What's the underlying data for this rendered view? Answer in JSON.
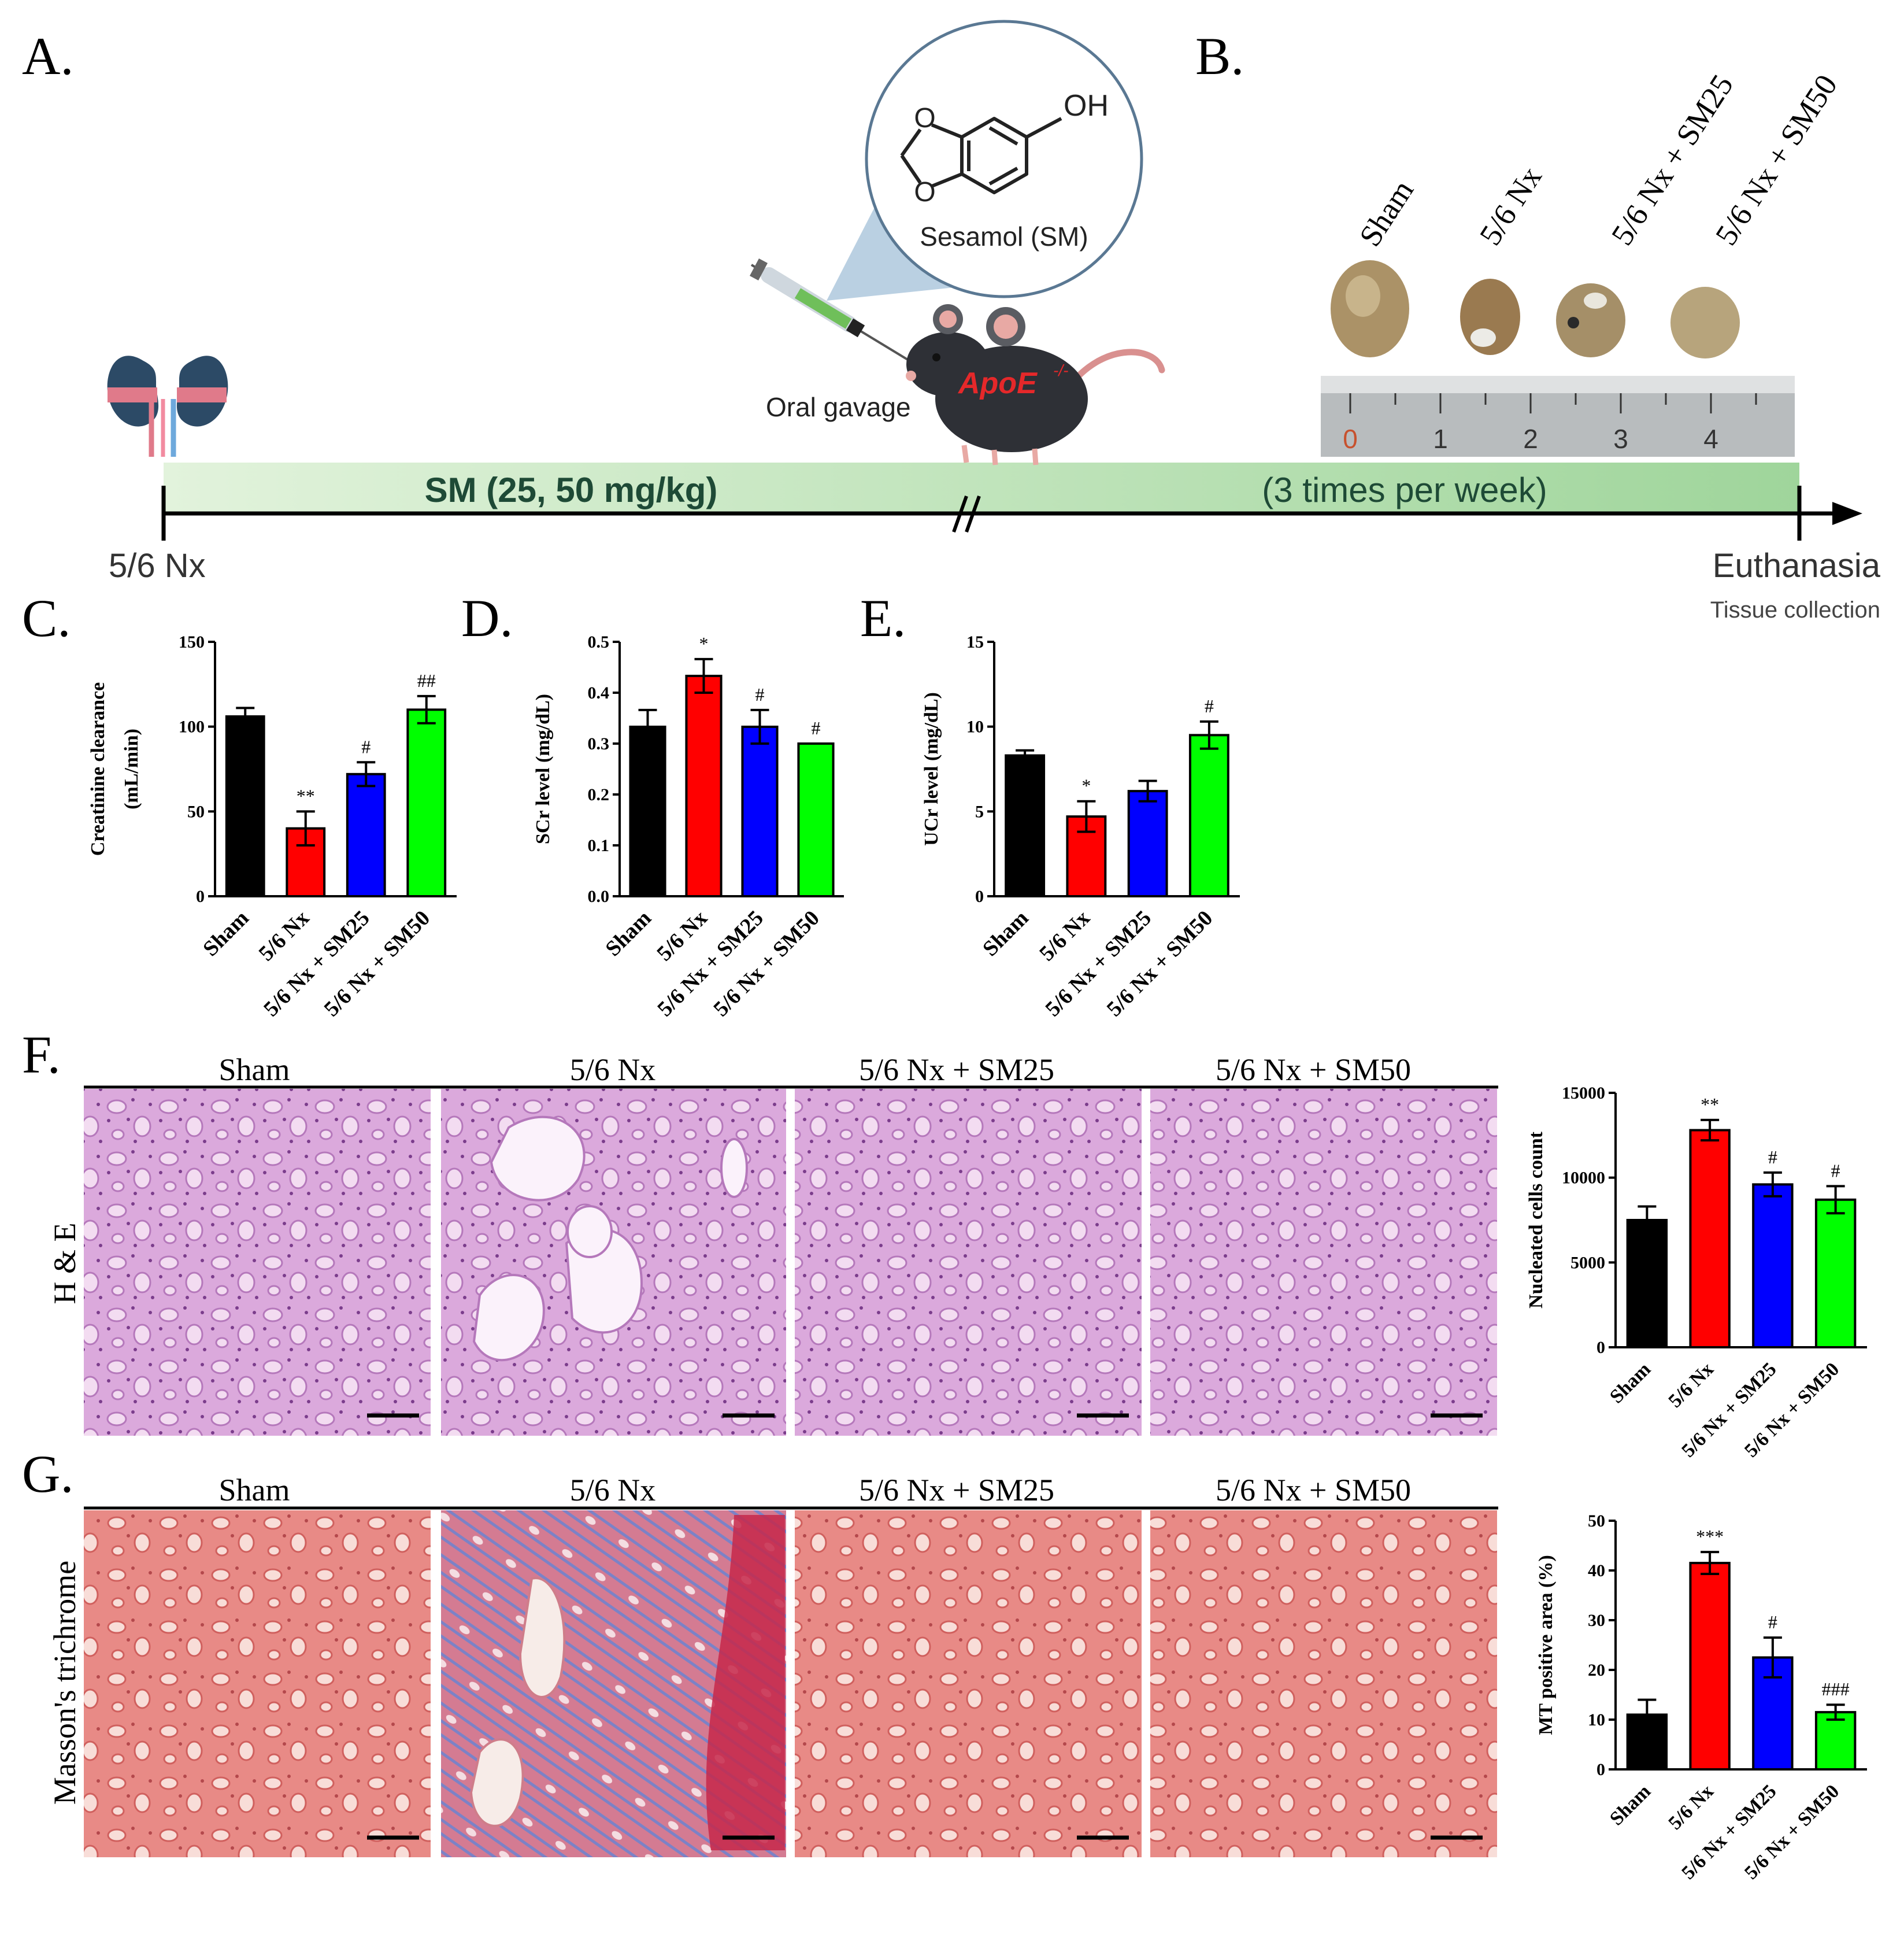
{
  "panels": {
    "A": "A.",
    "B": "B.",
    "C": "C.",
    "D": "D.",
    "E": "E.",
    "F": "F.",
    "G": "G."
  },
  "timeline": {
    "start_label": "5/6 Nx",
    "bar_left_text": "SM (25, 50 mg/kg)",
    "bar_right_text": "(3 times per week)",
    "end_label": "Euthanasia",
    "end_sublabel": "Tissue collection",
    "gavage_label": "Oral gavage",
    "mouse_label": "ApoE",
    "mouse_superscript": "-/-",
    "compound_label": "Sesamol (SM)",
    "compound_oh": "OH",
    "compound_o": "O"
  },
  "groups": [
    "Sham",
    "5/6 Nx",
    "5/6 Nx + SM25",
    "5/6 Nx + SM50"
  ],
  "colors": {
    "Sham": "#000000",
    "5/6 Nx": "#ff0000",
    "5/6 Nx + SM25": "#0000ff",
    "5/6 Nx + SM50": "#00ff00"
  },
  "ruler_ticks": [
    "0",
    "1",
    "2",
    "3",
    "4"
  ],
  "histology": {
    "rows": [
      "H & E",
      "Masson's trichrome"
    ]
  },
  "chart_data": [
    {
      "id": "C",
      "type": "bar",
      "categories": [
        "Sham",
        "5/6 Nx",
        "5/6 Nx + SM25",
        "5/6 Nx + SM50"
      ],
      "values": [
        106,
        40,
        72,
        110
      ],
      "errors": [
        5,
        10,
        7,
        8
      ],
      "annotations": [
        "",
        "**",
        "#",
        "##"
      ],
      "ylabel": "Creatinine clearance",
      "ylabel2": "(mL/min)",
      "ylim": [
        0,
        150
      ],
      "yticks": [
        0,
        50,
        100,
        150
      ],
      "ytick_labels": [
        "0",
        "50",
        "100",
        "150"
      ]
    },
    {
      "id": "D",
      "type": "bar",
      "categories": [
        "Sham",
        "5/6 Nx",
        "5/6 Nx + SM25",
        "5/6 Nx + SM50"
      ],
      "values": [
        0.333,
        0.433,
        0.333,
        0.3
      ],
      "errors": [
        0.033,
        0.033,
        0.033,
        0
      ],
      "annotations": [
        "",
        "*",
        "#",
        "#"
      ],
      "ylabel": "SCr level (mg/dL)",
      "ylim": [
        0,
        0.5
      ],
      "yticks": [
        0,
        0.1,
        0.2,
        0.3,
        0.4,
        0.5
      ],
      "ytick_labels": [
        "0.0",
        "0.1",
        "0.2",
        "0.3",
        "0.4",
        "0.5"
      ]
    },
    {
      "id": "E",
      "type": "bar",
      "categories": [
        "Sham",
        "5/6 Nx",
        "5/6 Nx + SM25",
        "5/6 Nx + SM50"
      ],
      "values": [
        8.3,
        4.7,
        6.2,
        9.5
      ],
      "errors": [
        0.3,
        0.9,
        0.6,
        0.8
      ],
      "annotations": [
        "",
        "*",
        "",
        "#"
      ],
      "ylabel": "UCr level (mg/dL)",
      "ylim": [
        0,
        15
      ],
      "yticks": [
        0,
        5,
        10,
        15
      ],
      "ytick_labels": [
        "0",
        "5",
        "10",
        "15"
      ]
    },
    {
      "id": "F",
      "type": "bar",
      "categories": [
        "Sham",
        "5/6 Nx",
        "5/6 Nx + SM25",
        "5/6 Nx + SM50"
      ],
      "values": [
        7500,
        12800,
        9600,
        8700
      ],
      "errors": [
        800,
        600,
        700,
        800
      ],
      "annotations": [
        "",
        "**",
        "#",
        "#"
      ],
      "ylabel": "Nucleated cells count",
      "ylim": [
        0,
        15000
      ],
      "yticks": [
        0,
        5000,
        10000,
        15000
      ],
      "ytick_labels": [
        "0",
        "5000",
        "10000",
        "15000"
      ]
    },
    {
      "id": "G",
      "type": "bar",
      "categories": [
        "Sham",
        "5/6 Nx",
        "5/6 Nx + SM25",
        "5/6 Nx + SM50"
      ],
      "values": [
        11,
        41.5,
        22.5,
        11.5
      ],
      "errors": [
        3,
        2.2,
        4,
        1.5
      ],
      "annotations": [
        "",
        "***",
        "#",
        "###"
      ],
      "ylabel": "MT positive area (%)",
      "ylim": [
        0,
        50
      ],
      "yticks": [
        0,
        10,
        20,
        30,
        40,
        50
      ],
      "ytick_labels": [
        "0",
        "10",
        "20",
        "30",
        "40",
        "50"
      ]
    }
  ]
}
